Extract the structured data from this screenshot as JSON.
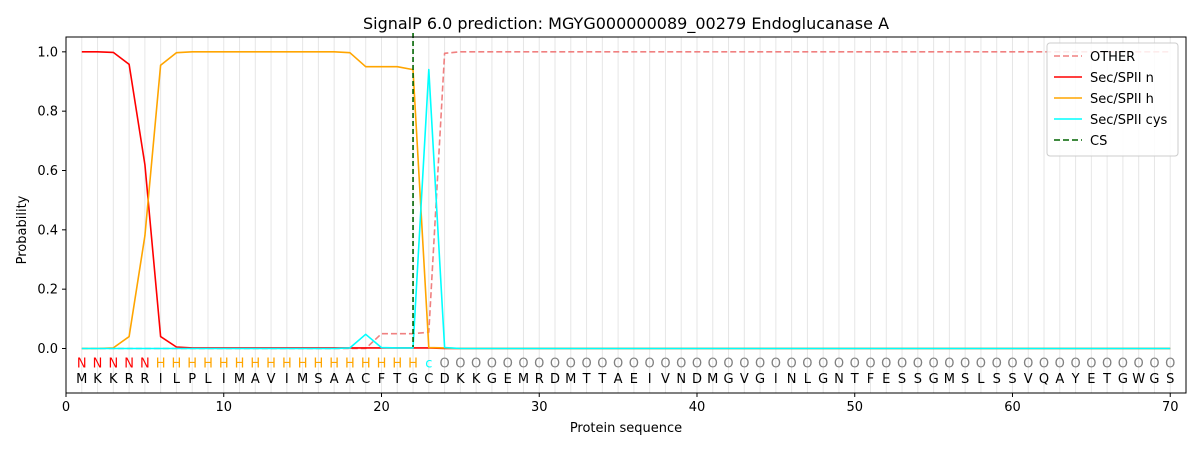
{
  "chart_data": {
    "type": "line",
    "title": "SignalP 6.0 prediction: MGYG000000089_00279 Endoglucanase A",
    "xlabel": "Protein sequence",
    "ylabel": "Probability",
    "xlim": [
      0,
      71
    ],
    "ylim": [
      -0.15,
      1.05
    ],
    "xticks": [
      0,
      10,
      20,
      30,
      40,
      50,
      60,
      70
    ],
    "yticks": [
      0.0,
      0.2,
      0.4,
      0.6,
      0.8,
      1.0
    ],
    "x_tick_labels": [
      "0",
      "10",
      "20",
      "30",
      "40",
      "50",
      "60",
      "70"
    ],
    "y_tick_labels": [
      "0.0",
      "0.2",
      "0.4",
      "0.6",
      "0.8",
      "1.0"
    ],
    "sequence": [
      "M",
      "K",
      "K",
      "R",
      "R",
      "I",
      "L",
      "P",
      "L",
      "I",
      "M",
      "A",
      "V",
      "I",
      "M",
      "S",
      "A",
      "A",
      "C",
      "F",
      "T",
      "G",
      "C",
      "D",
      "K",
      "K",
      "G",
      "E",
      "M",
      "R",
      "D",
      "M",
      "T",
      "T",
      "A",
      "E",
      "I",
      "V",
      "N",
      "D",
      "M",
      "G",
      "V",
      "G",
      "I",
      "N",
      "L",
      "G",
      "N",
      "T",
      "F",
      "E",
      "S",
      "S",
      "G",
      "M",
      "S",
      "L",
      "S",
      "S",
      "V",
      "Q",
      "A",
      "Y",
      "E",
      "T",
      "G",
      "W",
      "G",
      "S"
    ],
    "labels": [
      "N",
      "N",
      "N",
      "N",
      "N",
      "H",
      "H",
      "H",
      "H",
      "H",
      "H",
      "H",
      "H",
      "H",
      "H",
      "H",
      "H",
      "H",
      "H",
      "H",
      "H",
      "H",
      "C",
      "O",
      "O",
      "O",
      "O",
      "O",
      "O",
      "O",
      "O",
      "O",
      "O",
      "O",
      "O",
      "O",
      "O",
      "O",
      "O",
      "O",
      "O",
      "O",
      "O",
      "O",
      "O",
      "O",
      "O",
      "O",
      "O",
      "O",
      "O",
      "O",
      "O",
      "O",
      "O",
      "O",
      "O",
      "O",
      "O",
      "O",
      "O",
      "O",
      "O",
      "O",
      "O",
      "O",
      "O",
      "O",
      "O",
      "O"
    ],
    "label_colors": {
      "N": "#ff0000",
      "H": "#ffa500",
      "C": "#00ffff",
      "O": "#808080"
    },
    "series": [
      {
        "name": "OTHER",
        "color": "#f08080",
        "dash": "dashed",
        "values": [
          0,
          0,
          0,
          0,
          0,
          0,
          0,
          0,
          0,
          0,
          0,
          0,
          0,
          0,
          0,
          0,
          0,
          0,
          0,
          0.05,
          0.05,
          0.05,
          0.055,
          0.995,
          1,
          1,
          1,
          1,
          1,
          1,
          1,
          1,
          1,
          1,
          1,
          1,
          1,
          1,
          1,
          1,
          1,
          1,
          1,
          1,
          1,
          1,
          1,
          1,
          1,
          1,
          1,
          1,
          1,
          1,
          1,
          1,
          1,
          1,
          1,
          1,
          1,
          1,
          1,
          1,
          1,
          1,
          1,
          1,
          1,
          1
        ]
      },
      {
        "name": "Sec/SPII n",
        "color": "#ff0000",
        "dash": "solid",
        "values": [
          1.0,
          1.0,
          0.998,
          0.958,
          0.62,
          0.04,
          0.005,
          0.002,
          0.002,
          0.002,
          0.002,
          0.002,
          0.002,
          0.002,
          0.002,
          0.002,
          0.002,
          0.002,
          0.002,
          0.002,
          0.002,
          0.002,
          0.002,
          0,
          0,
          0,
          0,
          0,
          0,
          0,
          0,
          0,
          0,
          0,
          0,
          0,
          0,
          0,
          0,
          0,
          0,
          0,
          0,
          0,
          0,
          0,
          0,
          0,
          0,
          0,
          0,
          0,
          0,
          0,
          0,
          0,
          0,
          0,
          0,
          0,
          0,
          0,
          0,
          0,
          0,
          0,
          0,
          0,
          0,
          0
        ]
      },
      {
        "name": "Sec/SPII h",
        "color": "#ffa500",
        "dash": "solid",
        "values": [
          0,
          0,
          0.002,
          0.04,
          0.38,
          0.955,
          0.997,
          1.0,
          1.0,
          1.0,
          1.0,
          1.0,
          1.0,
          1.0,
          1.0,
          1.0,
          1.0,
          0.997,
          0.95,
          0.95,
          0.95,
          0.94,
          0.003,
          0.002,
          0,
          0,
          0,
          0,
          0,
          0,
          0,
          0,
          0,
          0,
          0,
          0,
          0,
          0,
          0,
          0,
          0,
          0,
          0,
          0,
          0,
          0,
          0,
          0,
          0,
          0,
          0,
          0,
          0,
          0,
          0,
          0,
          0,
          0,
          0,
          0,
          0,
          0,
          0,
          0,
          0,
          0,
          0,
          0,
          0,
          0
        ]
      },
      {
        "name": "Sec/SPII cys",
        "color": "#00ffff",
        "dash": "solid",
        "values": [
          0,
          0,
          0,
          0,
          0,
          0,
          0,
          0,
          0,
          0,
          0,
          0,
          0,
          0,
          0,
          0,
          0,
          0.002,
          0.048,
          0.003,
          0.002,
          0.002,
          0.94,
          0.003,
          0,
          0,
          0,
          0,
          0,
          0,
          0,
          0,
          0,
          0,
          0,
          0,
          0,
          0,
          0,
          0,
          0,
          0,
          0,
          0,
          0,
          0,
          0,
          0,
          0,
          0,
          0,
          0,
          0,
          0,
          0,
          0,
          0,
          0,
          0,
          0,
          0,
          0,
          0,
          0,
          0,
          0,
          0,
          0,
          0,
          0
        ]
      }
    ],
    "cs_line": {
      "name": "CS",
      "x": 22,
      "color": "#006400",
      "dash": "dashed"
    },
    "legend_position": "top-right",
    "vertical_grid": true
  }
}
